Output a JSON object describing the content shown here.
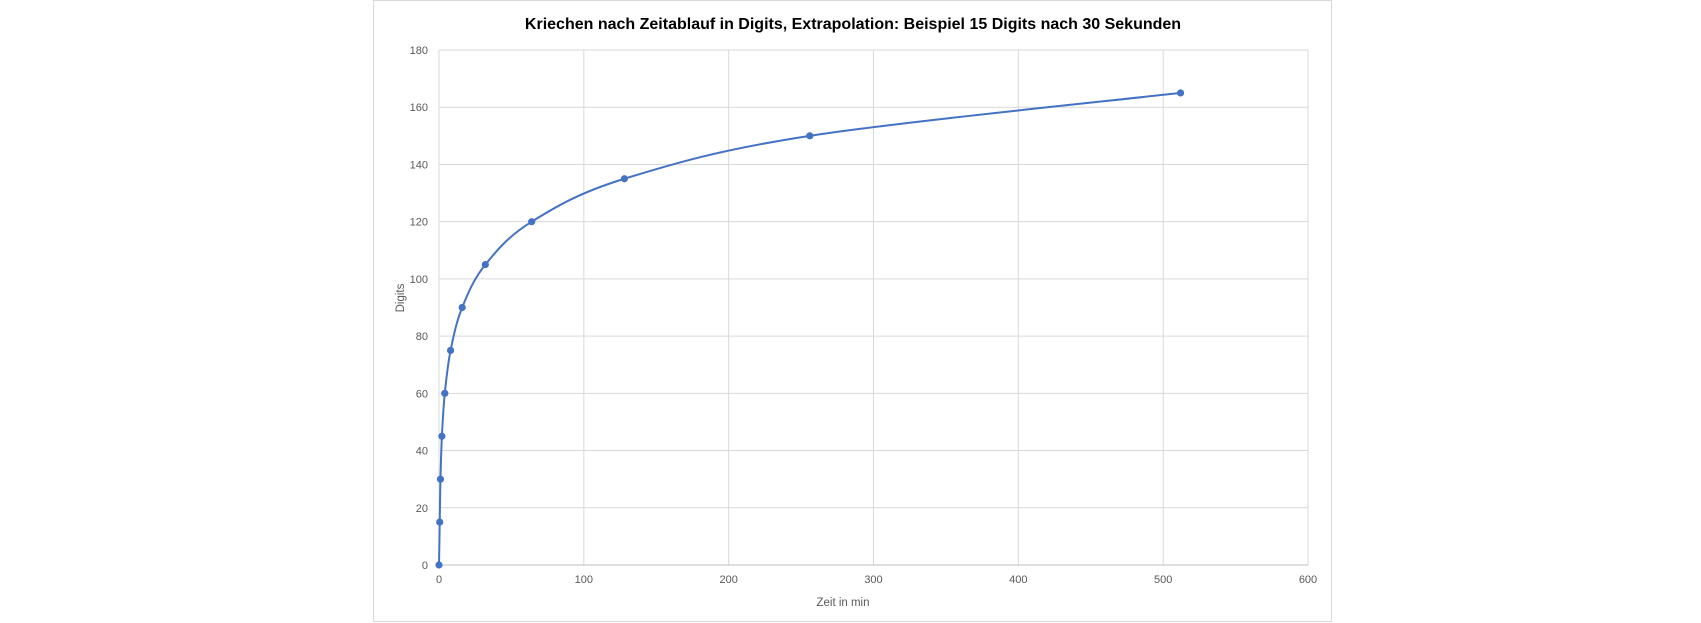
{
  "chart_data": {
    "type": "scatter",
    "title": "Kriechen nach Zeitablauf in Digits, Extrapolation: Beispiel 15 Digits nach 30 Sekunden",
    "xlabel": "Zeit in min",
    "ylabel": "Digits",
    "xlim": [
      0,
      600
    ],
    "ylim": [
      0,
      180
    ],
    "x_ticks": [
      0,
      100,
      200,
      300,
      400,
      500,
      600
    ],
    "y_ticks": [
      0,
      20,
      40,
      60,
      80,
      100,
      120,
      140,
      160,
      180
    ],
    "grid": true,
    "legend": "none",
    "smooth_line": true,
    "series": [
      {
        "color": "#4472c4",
        "x": [
          0,
          0.5,
          1,
          2,
          4,
          8,
          16,
          32,
          64,
          128,
          256,
          512
        ],
        "y": [
          0,
          15,
          30,
          45,
          60,
          75,
          90,
          105,
          120,
          135,
          150,
          165
        ]
      }
    ]
  }
}
